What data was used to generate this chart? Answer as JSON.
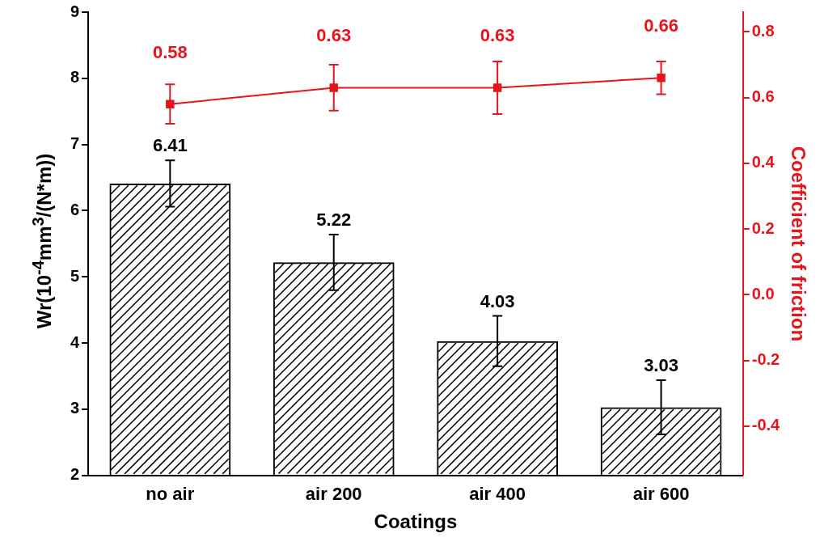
{
  "chart_data": {
    "type": "bar",
    "xlabel": "Coatings",
    "ylabel": "Wr(10$^{-4}$mm$^{3}$/(N*m))",
    "y2label": "Coefficient of friction",
    "categories": [
      "no air",
      "air 200",
      "air 400",
      "air 600"
    ],
    "series": [
      {
        "color": "#000000",
        "values": [
          6.41,
          5.22,
          4.03,
          3.03
        ],
        "errors": [
          0.35,
          0.42,
          0.38,
          0.41
        ]
      },
      {
        "type": "line",
        "axis": "y2",
        "color": "#e8141b",
        "values": [
          0.58,
          0.63,
          0.63,
          0.66
        ],
        "errors": [
          0.06,
          0.07,
          0.08,
          0.05
        ]
      }
    ],
    "ylim": [
      2,
      9
    ],
    "yticks": [
      2,
      3,
      4,
      5,
      6,
      7,
      8,
      9
    ],
    "y2lim": [
      -0.55,
      0.86
    ],
    "y2ticks": [
      {
        "value": -0.4,
        "label": "-0.4"
      },
      {
        "value": -0.2,
        "label": "-0.2"
      },
      {
        "value": 0,
        "label": "0.0"
      },
      {
        "value": 0.2,
        "label": "0.2"
      },
      {
        "value": 0.4,
        "label": "0.4"
      },
      {
        "value": 0.6,
        "label": "0.6"
      },
      {
        "value": 0.8,
        "label": "0.8"
      }
    ],
    "data_labels": true,
    "marker": "square",
    "legend": false,
    "grid": false
  }
}
